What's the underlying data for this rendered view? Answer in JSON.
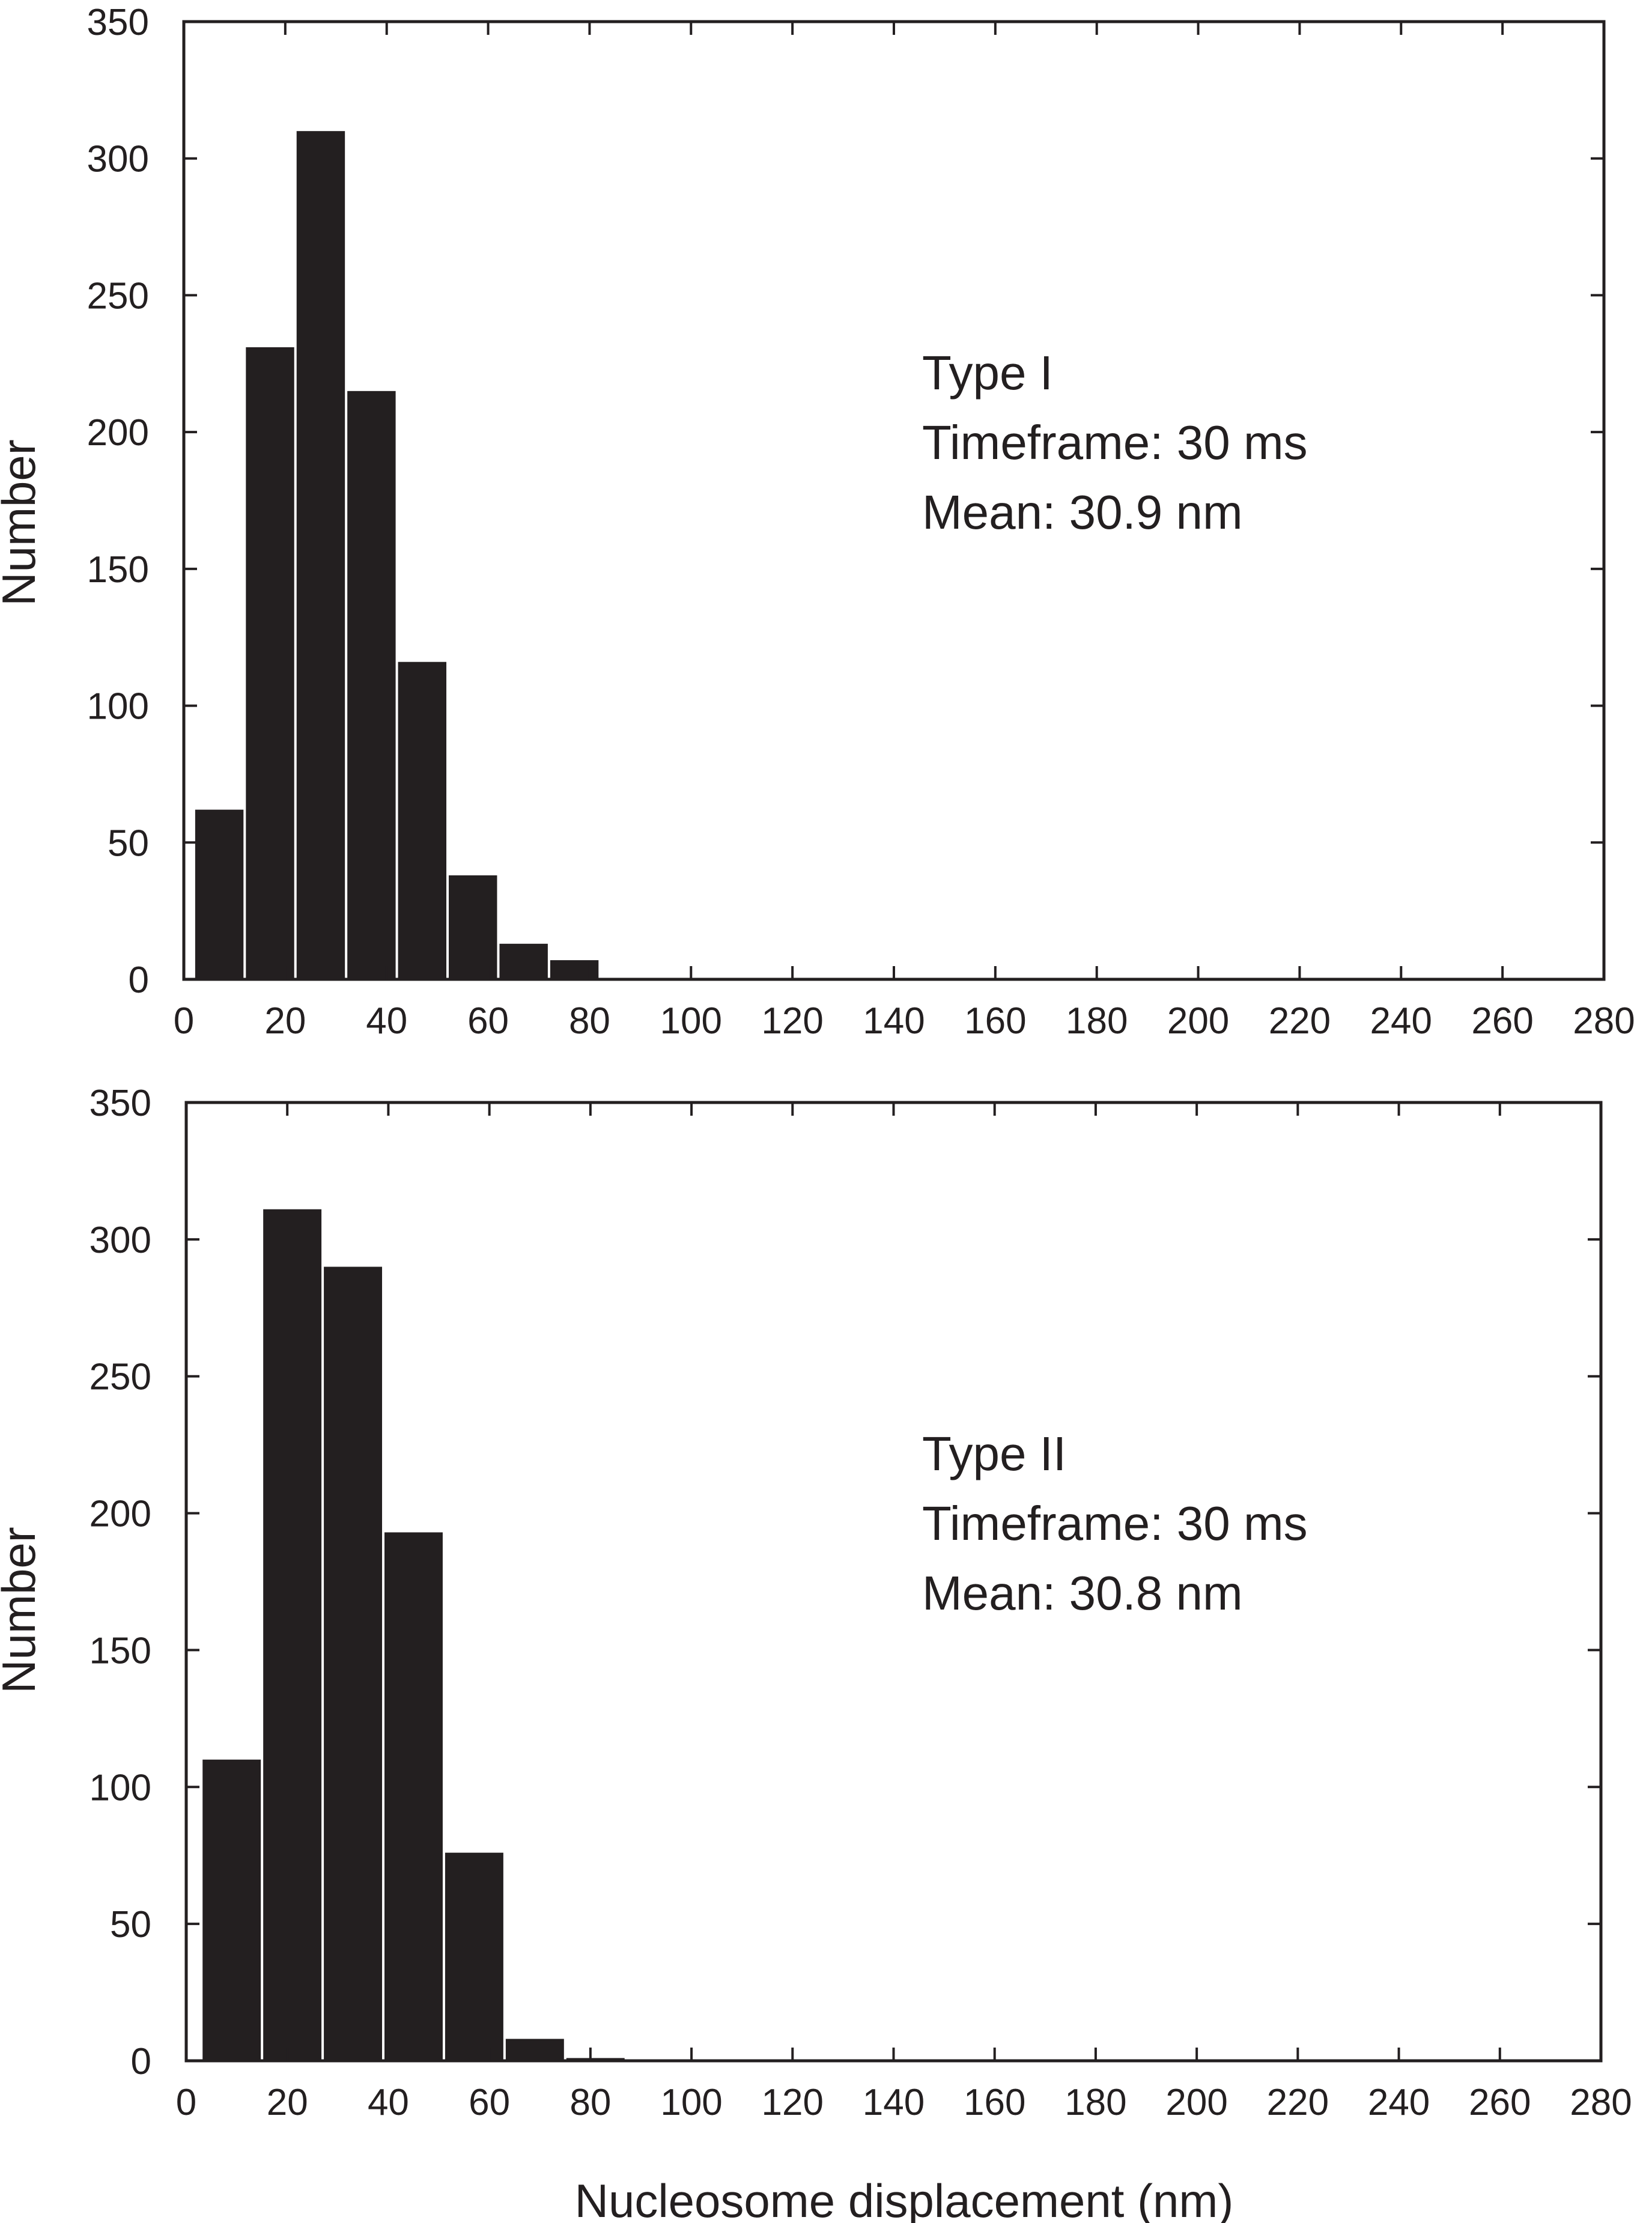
{
  "chart_data": [
    {
      "type": "bar",
      "title": "",
      "xlabel": "",
      "ylabel": "Number",
      "xlim": [
        0,
        280
      ],
      "ylim": [
        0,
        350
      ],
      "xticks": [
        0,
        20,
        40,
        60,
        80,
        100,
        120,
        140,
        160,
        180,
        200,
        220,
        240,
        260,
        280
      ],
      "yticks": [
        0,
        50,
        100,
        150,
        200,
        250,
        300,
        350
      ],
      "bin_width": 10,
      "x": [
        7,
        17,
        27,
        37,
        47,
        57,
        67,
        77
      ],
      "values": [
        62,
        231,
        310,
        215,
        116,
        38,
        13,
        7
      ],
      "annotations": [
        "Type I",
        "Timeframe: 30 ms",
        "Mean: 30.9 nm"
      ],
      "bar_color": "#231f20",
      "grid": false
    },
    {
      "type": "bar",
      "title": "",
      "xlabel": "Nucleosome displacement (nm)",
      "ylabel": "Number",
      "xlim": [
        0,
        280
      ],
      "ylim": [
        0,
        350
      ],
      "xticks": [
        0,
        20,
        40,
        60,
        80,
        100,
        120,
        140,
        160,
        180,
        200,
        220,
        240,
        260,
        280
      ],
      "yticks": [
        0,
        50,
        100,
        150,
        200,
        250,
        300,
        350
      ],
      "bin_width": 12,
      "x": [
        9,
        21,
        33,
        45,
        57,
        69,
        81
      ],
      "values": [
        110,
        311,
        290,
        193,
        76,
        8,
        1
      ],
      "annotations": [
        "Type II",
        "Timeframe: 30 ms",
        "Mean: 30.8 nm"
      ],
      "bar_color": "#231f20",
      "grid": false
    }
  ]
}
